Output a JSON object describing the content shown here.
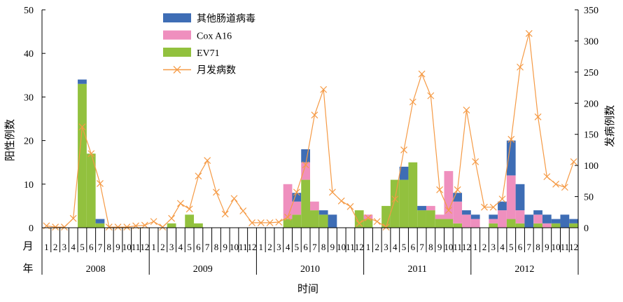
{
  "chart_data": {
    "type": "bar",
    "stacked": true,
    "title": "",
    "xlabel": "时间",
    "ylabel": "阳性例数",
    "y2label": "发病例数",
    "ylim": [
      0,
      50
    ],
    "y2lim": [
      0,
      350
    ],
    "yticks": [
      "0",
      "10",
      "20",
      "30",
      "40",
      "50"
    ],
    "y2ticks": [
      "0",
      "50",
      "100",
      "150",
      "200",
      "250",
      "300",
      "350"
    ],
    "row_month_label": "月",
    "row_year_label": "年",
    "years": [
      "2008",
      "2009",
      "2010",
      "2011",
      "2012"
    ],
    "months": [
      "1",
      "2",
      "3",
      "4",
      "5",
      "6",
      "7",
      "8",
      "9",
      "10",
      "11",
      "12"
    ],
    "legend_position": "top-center",
    "series": [
      {
        "name": "EV71",
        "color": "#92c13e",
        "type": "bar",
        "values": [
          0,
          0,
          0,
          0,
          33,
          17,
          1,
          0,
          0,
          0,
          0,
          0,
          0,
          0,
          1,
          0,
          3,
          1,
          0,
          0,
          0,
          0,
          0,
          0,
          0,
          0,
          0,
          2,
          3,
          11,
          4,
          3,
          0,
          0,
          0,
          4,
          2,
          0,
          5,
          11,
          11,
          15,
          4,
          4,
          2,
          2,
          1,
          0,
          0,
          0,
          1,
          0,
          2,
          1,
          0,
          1,
          0,
          1,
          0,
          1
        ]
      },
      {
        "name": "Cox A16",
        "color": "#ef8fbe",
        "type": "bar",
        "values": [
          0,
          0,
          0,
          0,
          0,
          0,
          0,
          0,
          0,
          0,
          0,
          0,
          0,
          0,
          0,
          0,
          0,
          0,
          0,
          0,
          0,
          0,
          0,
          0,
          0,
          0,
          0,
          8,
          3,
          4,
          2,
          0,
          0,
          0,
          0,
          0,
          1,
          0,
          0,
          0,
          0,
          0,
          0,
          1,
          1,
          11,
          5,
          3,
          2,
          0,
          1,
          4,
          10,
          3,
          0,
          2,
          1,
          0,
          0,
          0
        ]
      },
      {
        "name": "其他肠道病毒",
        "color": "#3e6db5",
        "type": "bar",
        "values": [
          0,
          0,
          0,
          0,
          1,
          0,
          1,
          0,
          0,
          0,
          0,
          0,
          0,
          0,
          0,
          0,
          0,
          0,
          0,
          0,
          0,
          0,
          0,
          0,
          0,
          0,
          0,
          0,
          2,
          3,
          0,
          1,
          3,
          0,
          0,
          0,
          0,
          0,
          0,
          0,
          3,
          0,
          1,
          0,
          0,
          0,
          2,
          1,
          1,
          0,
          1,
          2,
          8,
          6,
          3,
          1,
          2,
          1,
          3,
          1
        ]
      },
      {
        "name": "月发病数",
        "color": "#f59a45",
        "type": "line",
        "axis": "right",
        "values": [
          3,
          1,
          1,
          15,
          162,
          119,
          71,
          1,
          1,
          1,
          3,
          4,
          10,
          1,
          15,
          39,
          30,
          83,
          108,
          57,
          22,
          47,
          27,
          8,
          8,
          8,
          9,
          17,
          57,
          101,
          181,
          222,
          57,
          43,
          34,
          7,
          16,
          10,
          1,
          46,
          125,
          202,
          247,
          212,
          61,
          28,
          61,
          189,
          106,
          33,
          33,
          46,
          142,
          258,
          312,
          178,
          82,
          70,
          65,
          106
        ]
      }
    ]
  }
}
